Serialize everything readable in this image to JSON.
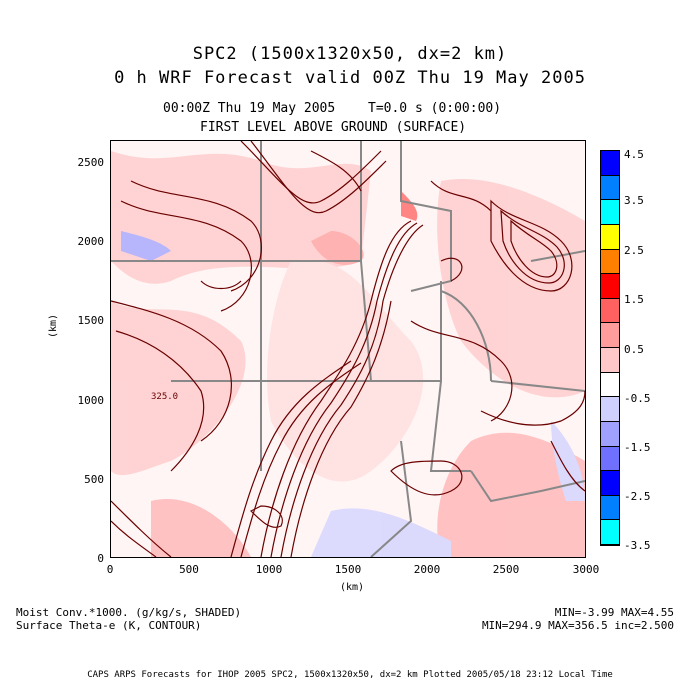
{
  "header": {
    "title_line1": "SPC2 (1500x1320x50, dx=2 km)",
    "title_line2": "0 h WRF Forecast valid 00Z Thu 19 May 2005",
    "time_label": "00:00Z Thu 19 May 2005",
    "t_label": "T=0.0 s (0:00:00)",
    "level_label": "FIRST LEVEL ABOVE GROUND (SURFACE)"
  },
  "axes": {
    "y_ticks": [
      "2500",
      "2000",
      "1500",
      "1000",
      "500",
      "0"
    ],
    "x_ticks": [
      "0",
      "500",
      "1000",
      "1500",
      "2000",
      "2500",
      "3000"
    ],
    "y_unit": "(km)",
    "x_unit": "(km)"
  },
  "map": {
    "contour_label": "325.0"
  },
  "colorbar": {
    "labels": [
      "4.5",
      "3.5",
      "2.5",
      "1.5",
      "0.5",
      "-0.5",
      "-1.5",
      "-2.5",
      "-3.5"
    ],
    "colors": [
      "#0000ff",
      "#0080ff",
      "#00ffff",
      "#ffff00",
      "#ff8000",
      "#ff0000",
      "#ff6060",
      "#ff9c9c",
      "#ffc8c8",
      "#ffffff",
      "#d0d0ff",
      "#a0a0ff",
      "#7070ff",
      "#0000ff",
      "#0080ff",
      "#00ffff"
    ]
  },
  "legend": {
    "shaded_label": "Moist Conv.*1000. (g/kg/s, SHADED)",
    "contour_label": "Surface Theta-e (K, CONTOUR)",
    "shaded_stats": "MIN=-3.99 MAX=4.55",
    "contour_stats": "MIN=294.9 MAX=356.5 inc=2.500"
  },
  "footer": {
    "text": "CAPS ARPS Forecasts for IHOP 2005   SPC2, 1500x1320x50, dx=2 km   Plotted 2005/05/18 23:12 Local Time"
  }
}
